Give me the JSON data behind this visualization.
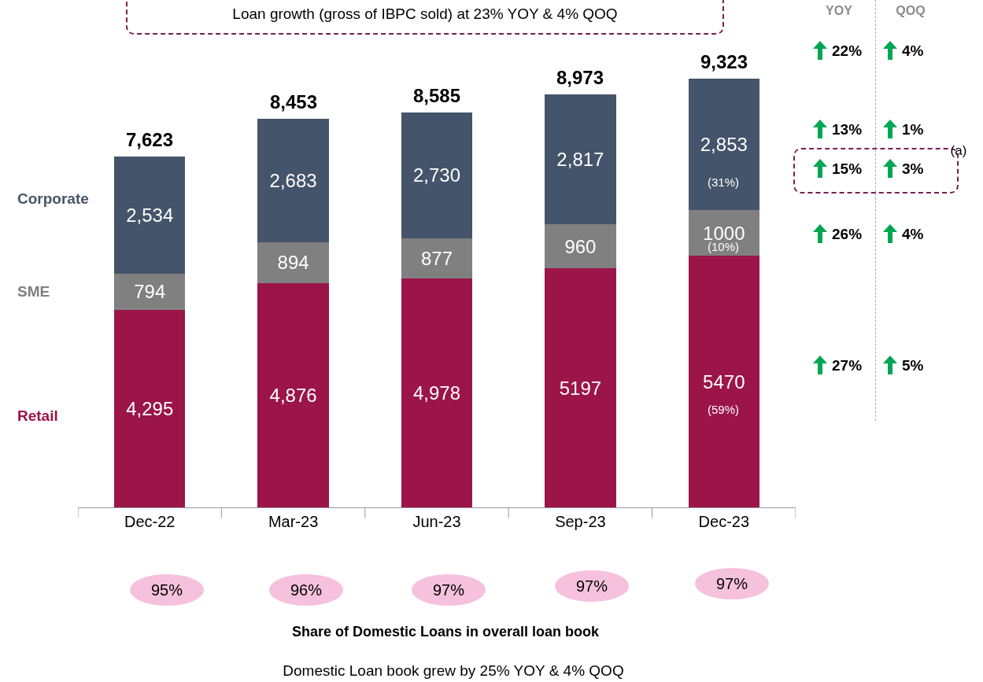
{
  "chart_data": [
    {
      "type": "bar",
      "stacked": true,
      "categories": [
        "Dec-22",
        "Mar-23",
        "Jun-23",
        "Sep-23",
        "Dec-23"
      ],
      "series": [
        {
          "name": "Retail",
          "color": "#9b1548",
          "values": [
            4295,
            4876,
            4978,
            5197,
            5470
          ],
          "value_labels": [
            "4,295",
            "4,876",
            "4,978",
            "5197",
            "5470"
          ]
        },
        {
          "name": "SME",
          "color": "#808080",
          "values": [
            794,
            894,
            877,
            960,
            1000
          ],
          "value_labels": [
            "794",
            "894",
            "877",
            "960",
            "1000"
          ]
        },
        {
          "name": "Corporate",
          "color": "#44546a",
          "values": [
            2534,
            2683,
            2730,
            2817,
            2853
          ],
          "value_labels": [
            "2,534",
            "2,683",
            "2,730",
            "2,817",
            "2,853"
          ]
        }
      ],
      "totals": [
        "7,623",
        "8,453",
        "8,585",
        "8,973",
        "9,323"
      ],
      "tick_labels": "x",
      "legend": false,
      "annotations": [
        "Loan growth (gross of IBPC sold) at 23% YOY & 4% QOQ",
        "(31%)",
        "(10%)",
        "(59%)",
        "95%",
        "96%",
        "97%",
        "97%",
        "97%",
        "Share of Domestic Loans in overall loan book",
        "Domestic Loan book grew by 25% YOY & 4% QOQ"
      ]
    },
    {
      "type": "other",
      "annotations": [
        "YOY",
        "QOQ",
        "22%",
        "4%",
        "13%",
        "1%",
        "15%",
        "3%",
        "26%",
        "4%",
        "27%",
        "5%",
        "(a)"
      ]
    }
  ]
}
